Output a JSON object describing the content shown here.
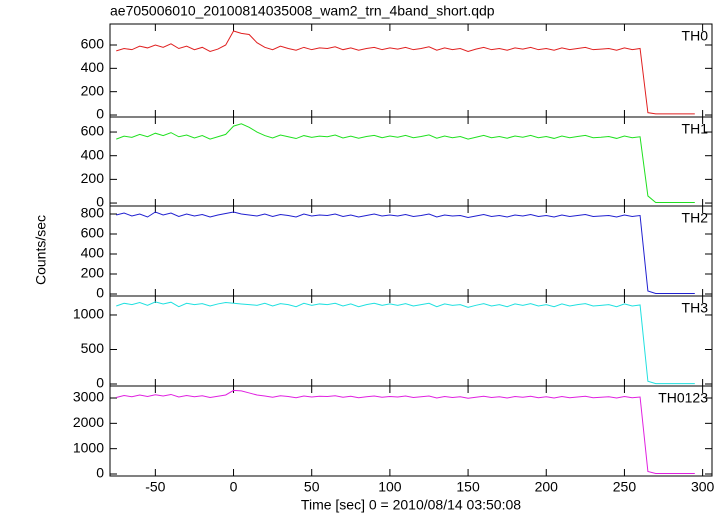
{
  "chart_data": [
    {
      "type": "line",
      "title": "ae705006010_20100814035008_wam2_trn_4band_short.qdp",
      "x": [
        -75,
        -70,
        -65,
        -60,
        -55,
        -50,
        -45,
        -40,
        -35,
        -30,
        -25,
        -20,
        -15,
        -10,
        -5,
        0,
        5,
        10,
        15,
        20,
        25,
        30,
        35,
        40,
        45,
        50,
        55,
        60,
        65,
        70,
        75,
        80,
        85,
        90,
        95,
        100,
        105,
        110,
        115,
        120,
        125,
        130,
        135,
        140,
        145,
        150,
        155,
        160,
        165,
        170,
        175,
        180,
        185,
        190,
        195,
        200,
        205,
        210,
        215,
        220,
        225,
        230,
        235,
        240,
        245,
        250,
        255,
        260,
        265,
        270,
        275,
        280,
        285,
        290,
        295
      ],
      "series": [
        {
          "name": "TH0",
          "color": "#e02020",
          "values": [
            550,
            570,
            560,
            590,
            575,
            600,
            580,
            610,
            570,
            590,
            560,
            580,
            545,
            565,
            600,
            720,
            700,
            690,
            620,
            580,
            560,
            590,
            570,
            555,
            580,
            560,
            575,
            570,
            585,
            560,
            575,
            555,
            570,
            580,
            560,
            575,
            565,
            580,
            560,
            570,
            585,
            555,
            575,
            560,
            570,
            545,
            565,
            580,
            560,
            570,
            555,
            575,
            565,
            580,
            560,
            570,
            555,
            575,
            560,
            570,
            580,
            560,
            565,
            570,
            555,
            575,
            560,
            570,
            20,
            10,
            10,
            10,
            10,
            10,
            10
          ]
        }
      ],
      "xlim": [
        -79,
        306
      ],
      "xticks": [
        -50,
        0,
        50,
        100,
        150,
        200,
        250,
        300
      ],
      "ylim": [
        -17,
        780
      ],
      "yticks": [
        0,
        200,
        400,
        600
      ]
    },
    {
      "type": "line",
      "x": [
        -75,
        -70,
        -65,
        -60,
        -55,
        -50,
        -45,
        -40,
        -35,
        -30,
        -25,
        -20,
        -15,
        -10,
        -5,
        0,
        5,
        10,
        15,
        20,
        25,
        30,
        35,
        40,
        45,
        50,
        55,
        60,
        65,
        70,
        75,
        80,
        85,
        90,
        95,
        100,
        105,
        110,
        115,
        120,
        125,
        130,
        135,
        140,
        145,
        150,
        155,
        160,
        165,
        170,
        175,
        180,
        185,
        190,
        195,
        200,
        205,
        210,
        215,
        220,
        225,
        230,
        235,
        240,
        245,
        250,
        255,
        260,
        265,
        270,
        275,
        280,
        285,
        290,
        295
      ],
      "series": [
        {
          "name": "TH1",
          "color": "#20e020",
          "values": [
            540,
            565,
            555,
            580,
            560,
            590,
            570,
            595,
            560,
            575,
            550,
            570,
            540,
            560,
            580,
            650,
            670,
            640,
            600,
            570,
            550,
            575,
            560,
            545,
            570,
            555,
            565,
            560,
            575,
            550,
            565,
            548,
            562,
            572,
            552,
            566,
            556,
            572,
            552,
            562,
            576,
            548,
            566,
            552,
            562,
            540,
            556,
            572,
            552,
            562,
            548,
            566,
            556,
            572,
            552,
            562,
            546,
            566,
            552,
            562,
            572,
            552,
            556,
            562,
            546,
            566,
            552,
            560,
            60,
            5,
            5,
            5,
            5,
            5,
            5
          ]
        }
      ],
      "xlim": [
        -79,
        306
      ],
      "xticks": [
        -50,
        0,
        50,
        100,
        150,
        200,
        250,
        300
      ],
      "ylim": [
        -25,
        727
      ],
      "yticks": [
        0,
        200,
        400,
        600
      ]
    },
    {
      "type": "line",
      "ylabel": "Counts/sec",
      "x": [
        -75,
        -70,
        -65,
        -60,
        -55,
        -50,
        -45,
        -40,
        -35,
        -30,
        -25,
        -20,
        -15,
        -10,
        -5,
        0,
        5,
        10,
        15,
        20,
        25,
        30,
        35,
        40,
        45,
        50,
        55,
        60,
        65,
        70,
        75,
        80,
        85,
        90,
        95,
        100,
        105,
        110,
        115,
        120,
        125,
        130,
        135,
        140,
        145,
        150,
        155,
        160,
        165,
        170,
        175,
        180,
        185,
        190,
        195,
        200,
        205,
        210,
        215,
        220,
        225,
        230,
        235,
        240,
        245,
        250,
        255,
        260,
        265,
        270,
        275,
        280,
        285,
        290,
        295
      ],
      "series": [
        {
          "name": "TH2",
          "color": "#2020d0",
          "values": [
            790,
            810,
            780,
            800,
            770,
            820,
            790,
            810,
            775,
            800,
            780,
            795,
            770,
            790,
            805,
            820,
            800,
            790,
            780,
            800,
            775,
            795,
            785,
            770,
            800,
            780,
            790,
            785,
            800,
            775,
            790,
            770,
            785,
            800,
            780,
            790,
            780,
            795,
            775,
            785,
            800,
            770,
            790,
            780,
            785,
            765,
            780,
            795,
            775,
            785,
            770,
            790,
            780,
            795,
            775,
            785,
            770,
            790,
            775,
            785,
            795,
            775,
            780,
            785,
            770,
            790,
            775,
            785,
            30,
            5,
            5,
            5,
            5,
            5,
            5
          ]
        }
      ],
      "xlim": [
        -79,
        306
      ],
      "xticks": [
        -50,
        0,
        50,
        100,
        150,
        200,
        250,
        300
      ],
      "ylim": [
        -20,
        880
      ],
      "yticks": [
        0,
        200,
        400,
        600,
        800
      ]
    },
    {
      "type": "line",
      "x": [
        -75,
        -70,
        -65,
        -60,
        -55,
        -50,
        -45,
        -40,
        -35,
        -30,
        -25,
        -20,
        -15,
        -10,
        -5,
        0,
        5,
        10,
        15,
        20,
        25,
        30,
        35,
        40,
        45,
        50,
        55,
        60,
        65,
        70,
        75,
        80,
        85,
        90,
        95,
        100,
        105,
        110,
        115,
        120,
        125,
        130,
        135,
        140,
        145,
        150,
        155,
        160,
        165,
        170,
        175,
        180,
        185,
        190,
        195,
        200,
        205,
        210,
        215,
        220,
        225,
        230,
        235,
        240,
        245,
        250,
        255,
        260,
        265,
        270,
        275,
        280,
        285,
        290,
        295
      ],
      "series": [
        {
          "name": "TH3",
          "color": "#20e0e0",
          "values": [
            1130,
            1170,
            1150,
            1180,
            1140,
            1190,
            1160,
            1185,
            1120,
            1170,
            1150,
            1165,
            1130,
            1160,
            1180,
            1170,
            1160,
            1150,
            1140,
            1170,
            1130,
            1165,
            1150,
            1120,
            1170,
            1140,
            1160,
            1150,
            1170,
            1130,
            1160,
            1120,
            1150,
            1170,
            1140,
            1160,
            1140,
            1165,
            1130,
            1150,
            1170,
            1120,
            1160,
            1140,
            1150,
            1110,
            1140,
            1165,
            1130,
            1150,
            1120,
            1160,
            1140,
            1165,
            1130,
            1150,
            1120,
            1160,
            1130,
            1150,
            1165,
            1130,
            1140,
            1150,
            1120,
            1160,
            1130,
            1145,
            40,
            5,
            5,
            5,
            5,
            5,
            5
          ]
        }
      ],
      "xlim": [
        -79,
        306
      ],
      "xticks": [
        -50,
        0,
        50,
        100,
        150,
        200,
        250,
        300
      ],
      "ylim": [
        -29,
        1275
      ],
      "yticks": [
        0,
        500,
        1000
      ]
    },
    {
      "type": "line",
      "xlabel": "Time [sec] 0 = 2010/08/14 03:50:08",
      "x": [
        -75,
        -70,
        -65,
        -60,
        -55,
        -50,
        -45,
        -40,
        -35,
        -30,
        -25,
        -20,
        -15,
        -10,
        -5,
        0,
        5,
        10,
        15,
        20,
        25,
        30,
        35,
        40,
        45,
        50,
        55,
        60,
        65,
        70,
        75,
        80,
        85,
        90,
        95,
        100,
        105,
        110,
        115,
        120,
        125,
        130,
        135,
        140,
        145,
        150,
        155,
        160,
        165,
        170,
        175,
        180,
        185,
        190,
        195,
        200,
        205,
        210,
        215,
        220,
        225,
        230,
        235,
        240,
        245,
        250,
        255,
        260,
        265,
        270,
        275,
        280,
        285,
        290,
        295
      ],
      "series": [
        {
          "name": "TH0123",
          "color": "#e020e0",
          "values": [
            3020,
            3100,
            3050,
            3120,
            3060,
            3130,
            3080,
            3140,
            3040,
            3100,
            3050,
            3090,
            3020,
            3070,
            3120,
            3300,
            3280,
            3200,
            3120,
            3080,
            3030,
            3090,
            3060,
            3010,
            3080,
            3040,
            3070,
            3060,
            3090,
            3030,
            3070,
            3010,
            3050,
            3080,
            3030,
            3060,
            3040,
            3080,
            3020,
            3050,
            3080,
            3000,
            3060,
            3020,
            3050,
            2990,
            3030,
            3070,
            3020,
            3050,
            3000,
            3060,
            3030,
            3070,
            3010,
            3050,
            3000,
            3060,
            3010,
            3040,
            3070,
            3010,
            3030,
            3050,
            3000,
            3060,
            3010,
            3040,
            100,
            20,
            20,
            20,
            20,
            20,
            20
          ]
        }
      ],
      "xlim": [
        -79,
        306
      ],
      "xticks": [
        -50,
        0,
        50,
        100,
        150,
        200,
        250,
        300
      ],
      "ylim": [
        -79,
        3474
      ],
      "yticks": [
        0,
        1000,
        2000,
        3000
      ]
    }
  ]
}
